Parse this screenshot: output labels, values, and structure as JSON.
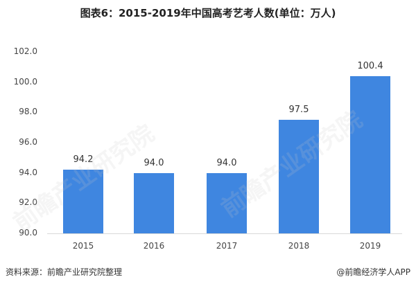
{
  "title": "图表6：2015-2019年中国高考艺考人数(单位：万人)",
  "chart_data": {
    "type": "bar",
    "title": "图表6：2015-2019年中国高考艺考人数(单位：万人)",
    "categories": [
      "2015",
      "2016",
      "2017",
      "2018",
      "2019"
    ],
    "values": [
      94.2,
      94.0,
      94.0,
      97.5,
      100.4
    ],
    "value_labels": [
      "94.2",
      "94.0",
      "94.0",
      "97.5",
      "100.4"
    ],
    "xlabel": "",
    "ylabel": "",
    "ylim": [
      90.0,
      102.0
    ],
    "yticks": [
      "102.0",
      "100.0",
      "98.0",
      "96.0",
      "94.0",
      "92.0",
      "90.0"
    ],
    "grid": false,
    "legend": null,
    "bar_color": "#3f86e0"
  },
  "footer": {
    "source": "资料来源：前瞻产业研究院整理",
    "credit": "@前瞻经济学人APP"
  },
  "watermark": "前瞻产业研究院"
}
